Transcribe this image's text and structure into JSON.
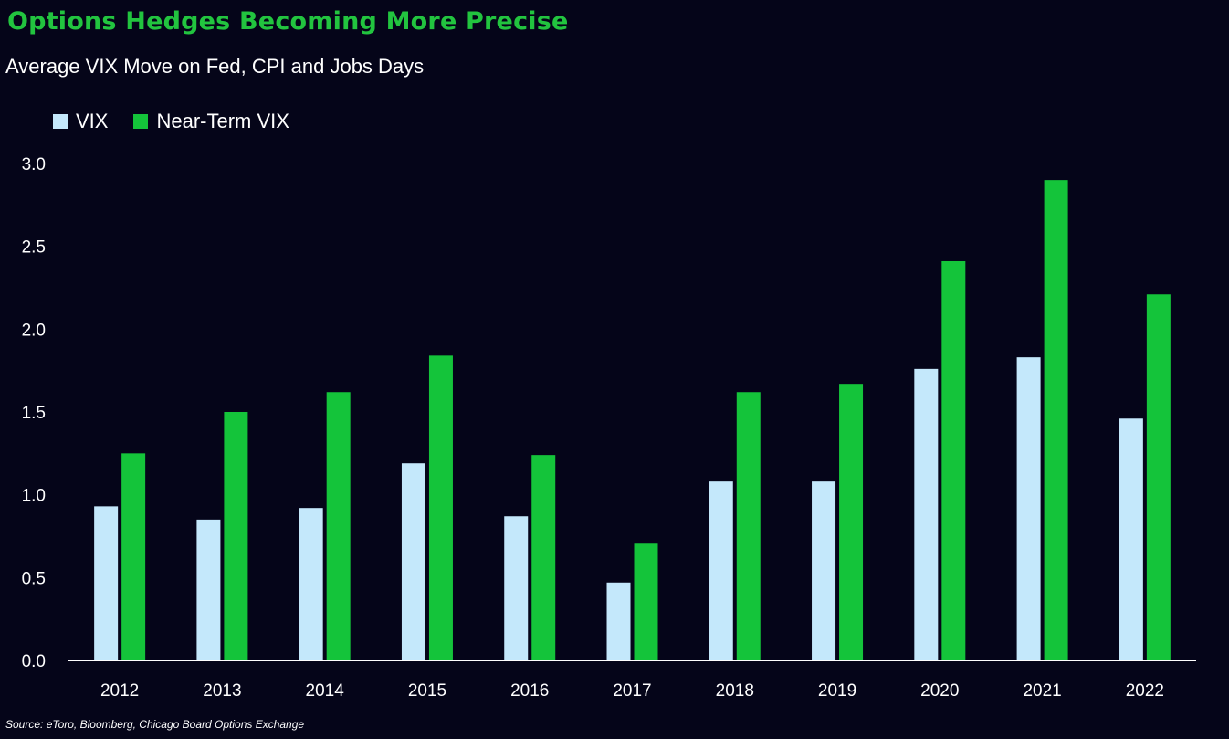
{
  "title": "Options Hedges Becoming More Precise",
  "subtitle": "Average VIX Move on Fed, CPI and Jobs Days",
  "source": "Source: eToro, Bloomberg, Chicago Board Options Exchange",
  "colors": {
    "background": "#050519",
    "vix": "#C4E8FB",
    "near_term": "#14C43A",
    "title": "#22C43F"
  },
  "chart_data": {
    "type": "bar",
    "categories": [
      "2012",
      "2013",
      "2014",
      "2015",
      "2016",
      "2017",
      "2018",
      "2019",
      "2020",
      "2021",
      "2022"
    ],
    "series": [
      {
        "name": "VIX",
        "values": [
          0.93,
          0.85,
          0.92,
          1.19,
          0.87,
          0.47,
          1.08,
          1.08,
          1.76,
          1.83,
          1.46
        ]
      },
      {
        "name": "Near-Term VIX",
        "values": [
          1.25,
          1.5,
          1.62,
          1.84,
          1.24,
          0.71,
          1.62,
          1.67,
          2.41,
          2.9,
          2.21
        ]
      }
    ],
    "ylim": [
      0,
      3.0
    ],
    "yticks": [
      "0.0",
      "0.5",
      "1.0",
      "1.5",
      "2.0",
      "2.5",
      "3.0"
    ],
    "xlabel": "",
    "ylabel": "",
    "grid": false,
    "legend": "top-left"
  }
}
